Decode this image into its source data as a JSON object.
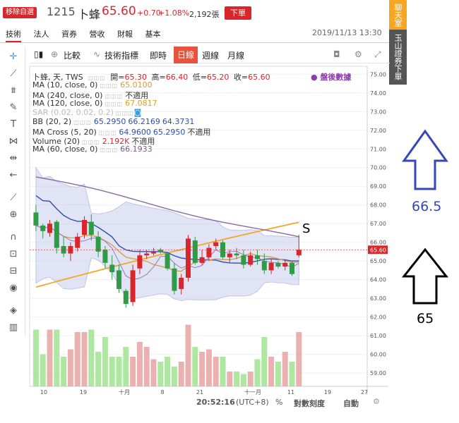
{
  "header": {
    "remove_label": "移除自選",
    "code": "1215",
    "name": "卜蜂",
    "price": "65.60",
    "change": "+0.70",
    "pct": "+1.08%",
    "volume": "2,192張",
    "order_label": "下單"
  },
  "tabs": [
    "技術",
    "法人",
    "資券",
    "營收",
    "財報",
    "基本"
  ],
  "datetime": "2019/11/13 13:30",
  "side": {
    "chat": "聊天室",
    "broker": "玉山證券下單"
  },
  "chart_toolbar": {
    "compare": "比較",
    "indicator": "技術指標",
    "realtime": "即時",
    "daily": "日線",
    "weekly": "週線",
    "monthly": "月線"
  },
  "legend": {
    "line1": {
      "name": "卜蜂, 天, TWS",
      "open_label": "開=",
      "open": "65.30",
      "high_label": "高=",
      "high": "66.40",
      "low_label": "低=",
      "low": "65.20",
      "close_label": "收=",
      "close": "65.60"
    },
    "after_hours": "盤後數據",
    "ma10": {
      "label": "MA (10, close, 0)",
      "value": "65.0100"
    },
    "ma240": {
      "label": "MA (240, close, 0)",
      "value": "不適用"
    },
    "ma120": {
      "label": "MA (120, close, 0)",
      "value": "67.0817"
    },
    "sar": {
      "label": "SAR (0.02, 0.02, 0.2)"
    },
    "bb": {
      "label": "BB (20, 2)",
      "v1": "65.2950",
      "v2": "66.2169",
      "v3": "64.3731"
    },
    "macross": {
      "label": "MA Cross (5, 20)",
      "v1": "64.9600",
      "v2": "65.2950",
      "v3": "不適用"
    },
    "volume": {
      "label": "Volume (20)",
      "v1": "2.192K",
      "v2": "不適用"
    },
    "ma60": {
      "label": "MA (60, close, 0)",
      "value": "66.1933"
    }
  },
  "bottom": {
    "time": "20:52:16",
    "tz": "(UTC+8)",
    "pct": "%",
    "log": "對數刻度",
    "auto": "自動"
  },
  "annotations": {
    "up_value": "66.5",
    "down_value": "65",
    "s_mark": "S"
  },
  "colors": {
    "up": "#d9262b",
    "down": "#2e9c47",
    "ma10": "#d99a40",
    "ma120": "#f5a623",
    "bb": "#2e4fb0",
    "ma60": "#8a6a9e",
    "vol_up": "#e8a3a3",
    "vol_down": "#9fe38f"
  },
  "chart_data": {
    "type": "candlestick",
    "y_ticks": [
      "75.00",
      "74.00",
      "73.00",
      "72.00",
      "71.00",
      "70.00",
      "69.00",
      "68.00",
      "67.00",
      "66.00",
      "65.00",
      "64.00",
      "63.00",
      "62.00",
      "61.00",
      "60.00",
      "59.00"
    ],
    "ylim": [
      58.4,
      75.2
    ],
    "x_ticks": [
      "10",
      "19",
      "十月",
      "8",
      "21",
      "十一月",
      "11",
      "19",
      "27"
    ],
    "last_price_label": "65.60",
    "candles": [
      [
        67.6,
        68.0,
        66.6,
        66.9
      ],
      [
        66.9,
        67.0,
        66.2,
        66.6
      ],
      [
        66.5,
        67.2,
        66.3,
        67.0
      ],
      [
        67.1,
        67.2,
        65.4,
        65.7
      ],
      [
        65.8,
        66.3,
        65.2,
        65.4
      ],
      [
        65.4,
        66.0,
        65.0,
        65.8
      ],
      [
        65.7,
        66.5,
        65.5,
        66.3
      ],
      [
        66.4,
        67.4,
        66.2,
        67.2
      ],
      [
        67.1,
        67.5,
        66.1,
        66.4
      ],
      [
        66.3,
        66.6,
        65.2,
        65.5
      ],
      [
        65.6,
        65.8,
        64.6,
        64.9
      ],
      [
        64.8,
        65.3,
        64.0,
        64.4
      ],
      [
        64.5,
        64.8,
        63.3,
        63.5
      ],
      [
        63.4,
        63.5,
        62.5,
        62.7
      ],
      [
        62.8,
        64.8,
        62.6,
        64.5
      ],
      [
        64.6,
        65.6,
        64.3,
        65.3
      ],
      [
        65.3,
        65.6,
        65.1,
        65.4
      ],
      [
        65.4,
        65.7,
        65.3,
        65.5
      ],
      [
        65.6,
        65.7,
        65.4,
        65.5
      ],
      [
        65.4,
        65.5,
        64.5,
        64.6
      ],
      [
        64.6,
        64.9,
        63.2,
        63.4
      ],
      [
        63.5,
        64.3,
        63.2,
        64.1
      ],
      [
        64.1,
        66.4,
        63.9,
        66.2
      ],
      [
        66.1,
        66.3,
        64.8,
        64.9
      ],
      [
        64.9,
        65.6,
        64.8,
        65.2
      ],
      [
        65.2,
        65.9,
        65.0,
        65.7
      ],
      [
        65.8,
        66.2,
        65.6,
        66.0
      ],
      [
        66.0,
        66.1,
        65.1,
        65.2
      ],
      [
        65.2,
        65.6,
        64.9,
        65.4
      ],
      [
        65.4,
        65.7,
        65.1,
        65.3
      ],
      [
        65.3,
        65.6,
        64.6,
        64.8
      ],
      [
        64.8,
        65.5,
        64.7,
        65.3
      ],
      [
        65.3,
        65.6,
        64.8,
        65.1
      ],
      [
        65.0,
        65.4,
        64.3,
        64.5
      ],
      [
        64.5,
        65.1,
        64.3,
        64.9
      ],
      [
        64.9,
        65.0,
        64.6,
        64.7
      ],
      [
        64.7,
        65.1,
        64.5,
        64.9
      ],
      [
        64.9,
        65.0,
        64.2,
        64.3
      ],
      [
        65.3,
        66.4,
        65.2,
        65.6
      ]
    ],
    "volumes": [
      2.3,
      1.3,
      2.3,
      2.3,
      1.2,
      1.5,
      2.2,
      2.2,
      2.3,
      1.4,
      2.0,
      1.2,
      1.2,
      1.6,
      1.2,
      1.8,
      1.6,
      1.1,
      1.0,
      1.2,
      0.8,
      1.0,
      2.5,
      1.6,
      1.4,
      1.5,
      1.2,
      1.2,
      0.6,
      0.6,
      0.5,
      0.6,
      1.1,
      2.0,
      1.2,
      1.0,
      1.4,
      1.0,
      2.2
    ],
    "volume_ylim": [
      0,
      2.8
    ]
  }
}
